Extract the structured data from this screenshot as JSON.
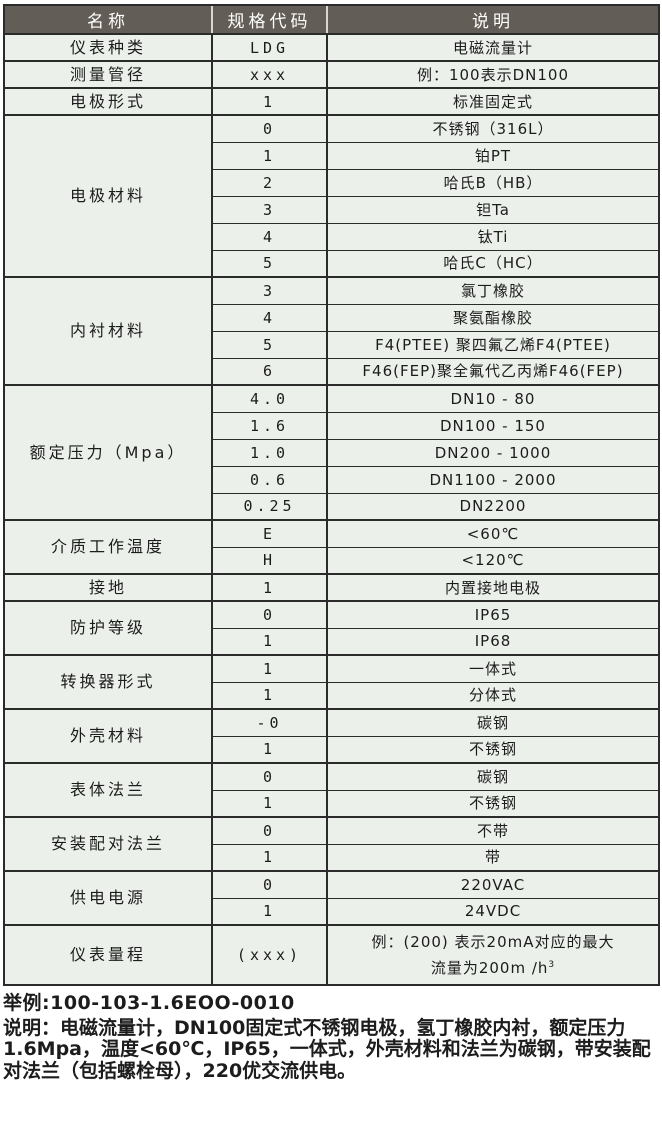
{
  "colors": {
    "header-bg": "#635d57",
    "header-text": "#ffffff",
    "table-bg": "#ecf0eb",
    "line": "#2b2b2b",
    "text": "#1c1c1c",
    "page-bg": "#ffffff"
  },
  "table": {
    "columns": [
      "名称",
      "规格代码",
      "说明"
    ],
    "groups": [
      {
        "name": "仪表种类",
        "rows": [
          {
            "code": "LDG",
            "desc": "电磁流量计"
          }
        ]
      },
      {
        "name": "测量管径",
        "rows": [
          {
            "code": "xxx",
            "desc": "例：100表示DN100"
          }
        ]
      },
      {
        "name": "电极形式",
        "rows": [
          {
            "code": "1",
            "desc": "标准固定式"
          }
        ]
      },
      {
        "name": "电极材料",
        "rows": [
          {
            "code": "0",
            "desc": "不锈钢（316L）"
          },
          {
            "code": "1",
            "desc": "铂PT"
          },
          {
            "code": "2",
            "desc": "哈氏B（HB）"
          },
          {
            "code": "3",
            "desc": "钽Ta"
          },
          {
            "code": "4",
            "desc": "钛Ti"
          },
          {
            "code": "5",
            "desc": "哈氏C（HC）"
          }
        ]
      },
      {
        "name": "内衬材料",
        "rows": [
          {
            "code": "3",
            "desc": "氯丁橡胶"
          },
          {
            "code": "4",
            "desc": "聚氨酯橡胶"
          },
          {
            "code": "5",
            "desc": "F4(PTEE) 聚四氟乙烯F4(PTEE)"
          },
          {
            "code": "6",
            "desc": "F46(FEP)聚全氟代乙丙烯F46(FEP)"
          }
        ]
      },
      {
        "name": "额定压力（Mpa）",
        "rows": [
          {
            "code": "4.0",
            "desc": "DN10 - 80"
          },
          {
            "code": "1.6",
            "desc": "DN100 - 150"
          },
          {
            "code": "1.0",
            "desc": "DN200 - 1000"
          },
          {
            "code": "0.6",
            "desc": "DN1100 - 2000"
          },
          {
            "code": "0.25",
            "desc": "DN2200"
          }
        ]
      },
      {
        "name": "介质工作温度",
        "rows": [
          {
            "code": "E",
            "desc": "<60℃"
          },
          {
            "code": "H",
            "desc": "<120℃"
          }
        ]
      },
      {
        "name": "接地",
        "rows": [
          {
            "code": "1",
            "desc": "内置接地电极"
          }
        ]
      },
      {
        "name": "防护等级",
        "rows": [
          {
            "code": "0",
            "desc": "IP65"
          },
          {
            "code": "1",
            "desc": "IP68"
          }
        ]
      },
      {
        "name": "转换器形式",
        "rows": [
          {
            "code": "1",
            "desc": "一体式"
          },
          {
            "code": "1",
            "desc": "分体式"
          }
        ]
      },
      {
        "name": "外壳材料",
        "rows": [
          {
            "code": "-0",
            "desc": "碳钢"
          },
          {
            "code": "1",
            "desc": "不锈钢"
          }
        ]
      },
      {
        "name": "表体法兰",
        "rows": [
          {
            "code": "0",
            "desc": "碳钢"
          },
          {
            "code": "1",
            "desc": "不锈钢"
          }
        ]
      },
      {
        "name": "安装配对法兰",
        "rows": [
          {
            "code": "0",
            "desc": "不带"
          },
          {
            "code": "1",
            "desc": "带"
          }
        ]
      },
      {
        "name": "供电电源",
        "rows": [
          {
            "code": "0",
            "desc": "220VAC"
          },
          {
            "code": "1",
            "desc": "24VDC"
          }
        ]
      },
      {
        "name": "仪表量程",
        "tall": true,
        "rows": [
          {
            "code": "(xxx)",
            "desc": [
              "例：(200) 表示20mA对应的最大",
              "流量为200m /h"
            ],
            "desc_sup": "3"
          }
        ]
      }
    ]
  },
  "footer": {
    "example": "举例:100-103-1.6EOO-0010",
    "note": "说明：电磁流量计，DN100固定式不锈钢电极，氢丁橡胶内衬，额定压力1.6Mpa，温度<60℃，IP65，一体式，外壳材料和法兰为碳钢，带安装配对法兰（包括螺栓母），220优交流供电。"
  }
}
